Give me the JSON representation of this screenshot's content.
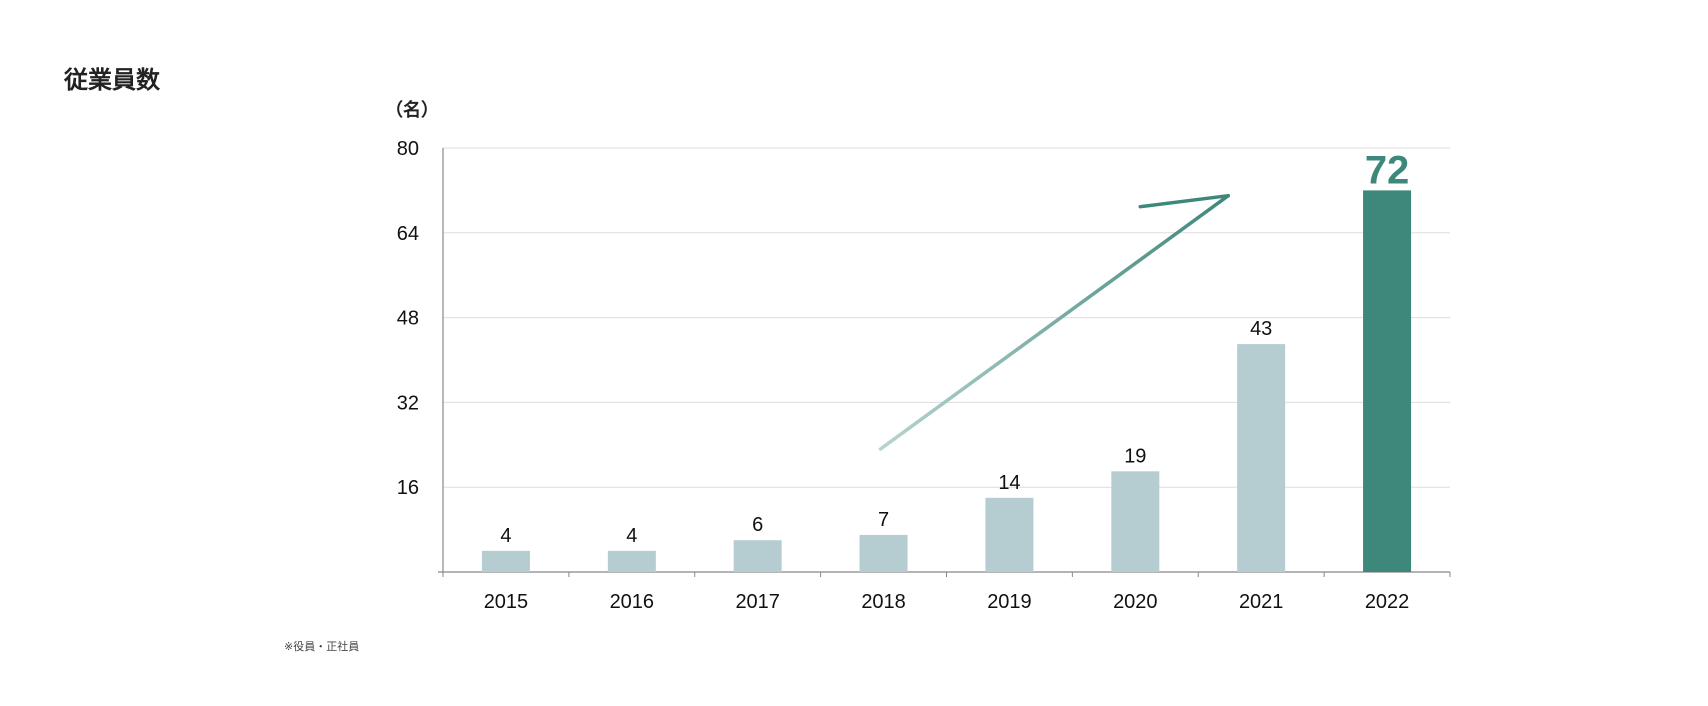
{
  "page": {
    "title": "従業員数",
    "footnote": "※役員・正社員"
  },
  "colors": {
    "bar": "#b5cdd1",
    "highlight_bar": "#3d887a",
    "arrow_start": "#b8d3d0",
    "arrow_end": "#3d887a",
    "grid": "#dddddd",
    "axis": "#888888"
  },
  "chart_data": {
    "type": "bar",
    "title": "",
    "ylabel": "（名）",
    "xlabel": "",
    "categories": [
      "2015",
      "2016",
      "2017",
      "2018",
      "2019",
      "2020",
      "2021",
      "2022"
    ],
    "values": [
      4,
      4,
      6,
      7,
      14,
      19,
      43,
      72
    ],
    "data_labels": [
      "4",
      "4",
      "6",
      "7",
      "14",
      "19",
      "43",
      "72"
    ],
    "highlight_category": "2022",
    "ylim": [
      0,
      80
    ],
    "yticks": [
      16,
      32,
      48,
      64,
      80
    ],
    "grid": true,
    "legend": "none",
    "annotation": "upward trend arrow from 2018 toward 2021"
  }
}
